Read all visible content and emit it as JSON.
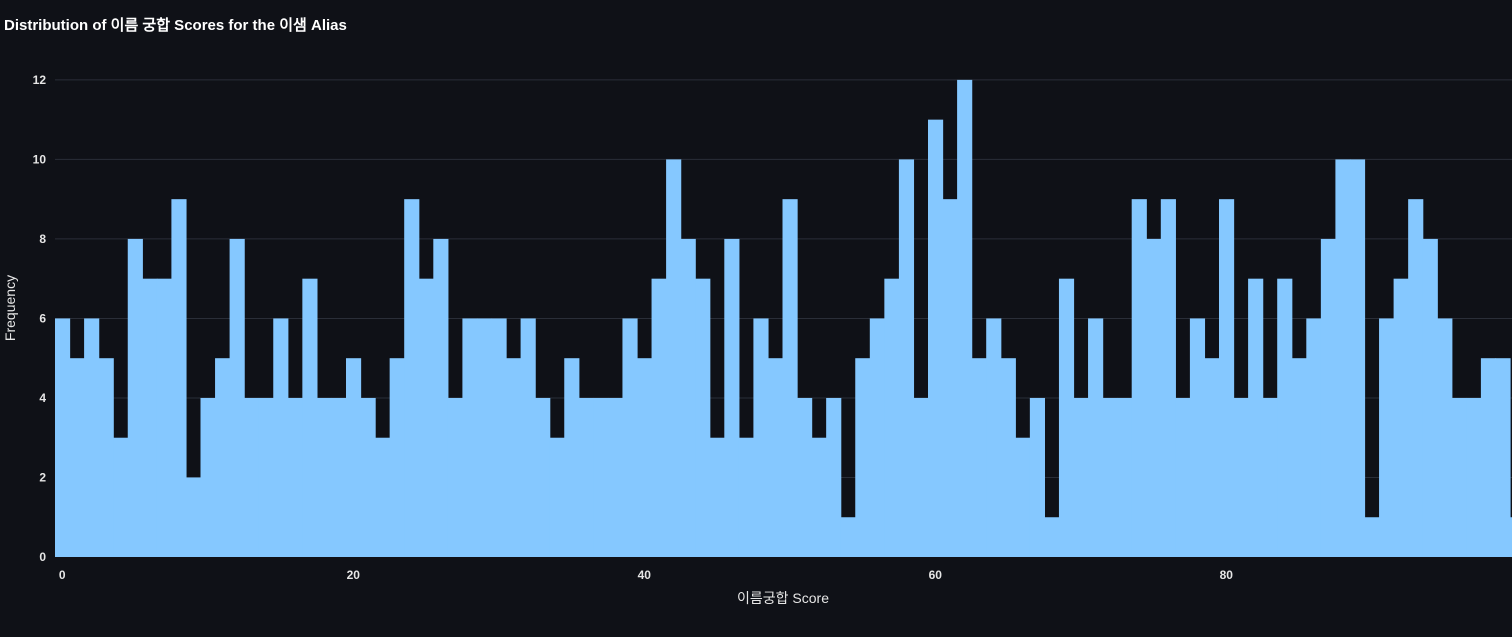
{
  "chart_data": {
    "type": "bar",
    "title": "Distribution of 이름 궁합 Scores for the 이샘 Alias",
    "xlabel": "이름궁합 Score",
    "ylabel": "Frequency",
    "x_start": 0,
    "bin_width": 1,
    "xlim": [
      0,
      100
    ],
    "ylim": [
      0,
      12.5
    ],
    "x_ticks": [
      0,
      20,
      40,
      60,
      80
    ],
    "y_ticks": [
      0,
      2,
      4,
      6,
      8,
      10,
      12
    ],
    "grid": true,
    "colors": {
      "bar": "#85c8ff",
      "background": "#0f1117",
      "grid": "#2a2e38",
      "text": "#e6e6e6"
    },
    "values": [
      6,
      5,
      6,
      5,
      3,
      8,
      7,
      7,
      9,
      2,
      4,
      5,
      8,
      4,
      4,
      6,
      4,
      7,
      4,
      4,
      5,
      4,
      3,
      5,
      9,
      7,
      8,
      4,
      6,
      6,
      6,
      5,
      6,
      4,
      3,
      5,
      4,
      4,
      4,
      6,
      5,
      7,
      10,
      8,
      7,
      3,
      8,
      3,
      6,
      5,
      9,
      4,
      3,
      4,
      1,
      5,
      6,
      7,
      10,
      4,
      11,
      9,
      12,
      5,
      6,
      5,
      3,
      4,
      1,
      7,
      4,
      6,
      4,
      4,
      9,
      8,
      9,
      4,
      6,
      5,
      9,
      4,
      7,
      4,
      7,
      5,
      6,
      8,
      10,
      10,
      1,
      6,
      7,
      9,
      8,
      6,
      4,
      4,
      5,
      5,
      1
    ]
  }
}
